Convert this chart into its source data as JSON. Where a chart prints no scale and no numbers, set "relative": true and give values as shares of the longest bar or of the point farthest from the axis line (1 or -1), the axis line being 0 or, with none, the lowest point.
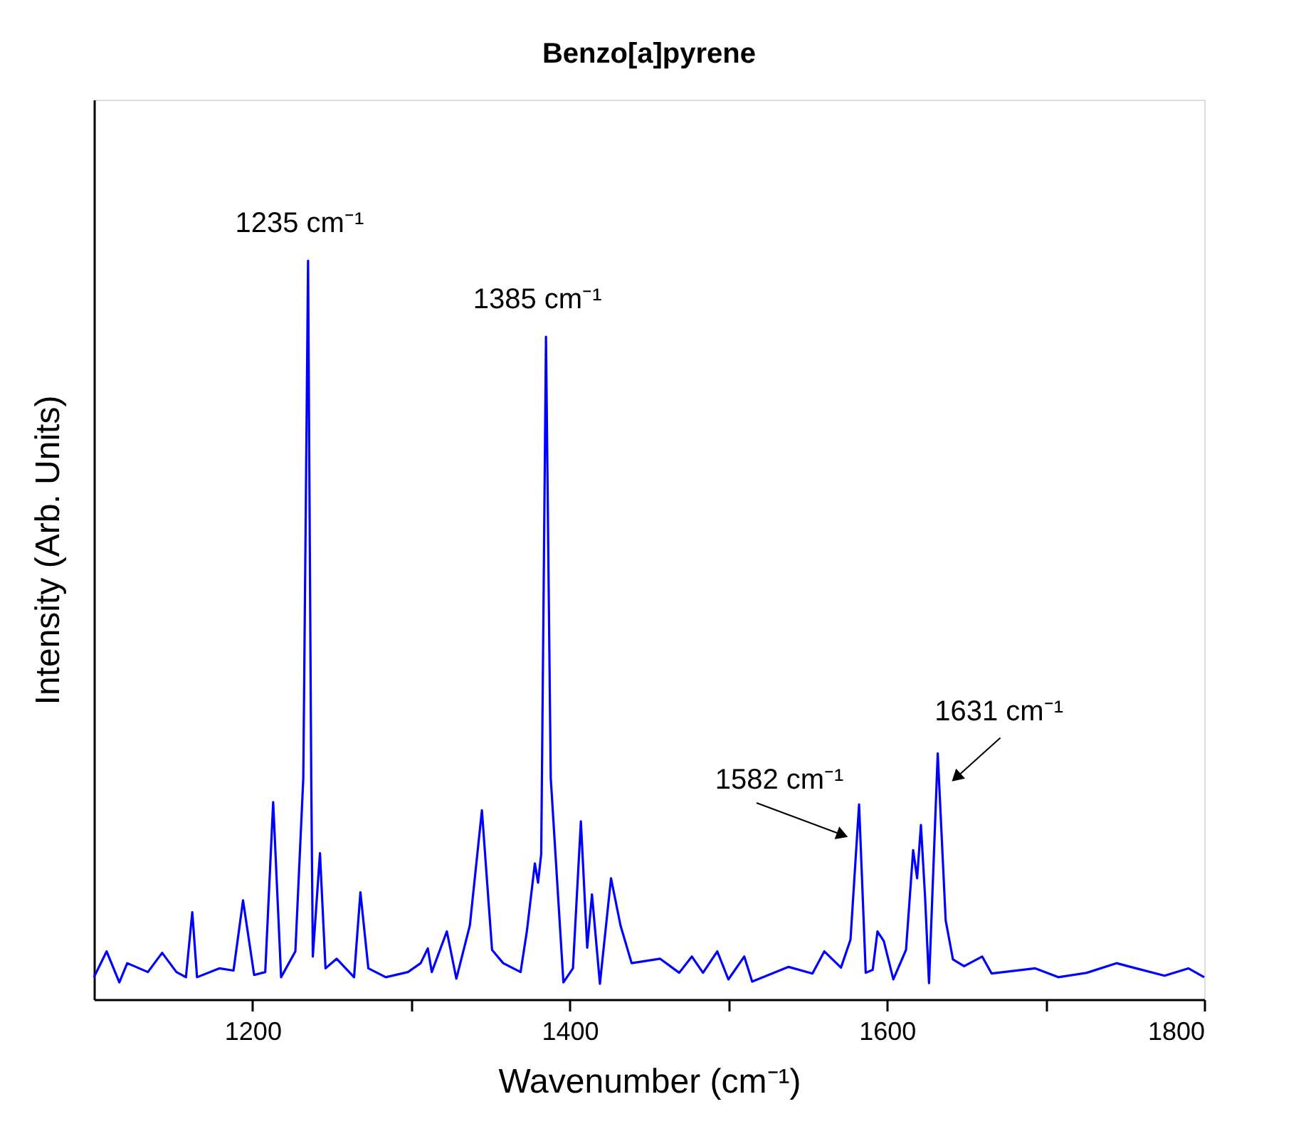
{
  "chart_data": {
    "type": "line",
    "title": "Benzo[a]pyrene",
    "xlabel": "Wavenumber (cm⁻¹)",
    "ylabel": "Intensity (Arb. Units)",
    "relative": true,
    "xlim": [
      1100,
      1800
    ],
    "xticks": [
      1200,
      {
        "value": 1300,
        "label": null
      },
      1400,
      {
        "value": 1500,
        "label": null
      },
      1600,
      {
        "value": 1700,
        "label": null
      },
      1800
    ],
    "grid": false,
    "marker": "none",
    "line_style": "solid",
    "series": [
      {
        "color": "#0000ff",
        "x": [
          1100,
          1108,
          1116,
          1121,
          1134,
          1143,
          1152,
          1158,
          1162,
          1165,
          1179,
          1188,
          1194,
          1201,
          1208,
          1213,
          1218,
          1227,
          1232,
          1235,
          1237,
          1238,
          1242.5,
          1246,
          1253,
          1264,
          1268,
          1273,
          1284,
          1298,
          1306,
          1310.5,
          1313,
          1322.5,
          1328.5,
          1337,
          1344.6,
          1351,
          1358,
          1369,
          1373,
          1378,
          1380,
          1382,
          1385,
          1388,
          1396,
          1402,
          1407,
          1411,
          1414,
          1419,
          1426,
          1432,
          1439,
          1457,
          1469,
          1477,
          1484,
          1493,
          1500,
          1510,
          1515,
          1538,
          1553,
          1560.5,
          1571,
          1577,
          1582.4,
          1586.6,
          1591,
          1594,
          1598,
          1604,
          1612,
          1616.5,
          1619,
          1621.4,
          1624,
          1626.5,
          1632,
          1637,
          1641.6,
          1648.6,
          1660,
          1666,
          1693.5,
          1708,
          1726,
          1744.7,
          1757,
          1775,
          1790,
          1800
        ],
        "values": [
          0.03,
          0.065,
          0.023,
          0.049,
          0.037,
          0.063,
          0.037,
          0.03,
          0.118,
          0.03,
          0.042,
          0.039,
          0.134,
          0.033,
          0.037,
          0.267,
          0.03,
          0.065,
          0.3,
          1.0,
          0.3,
          0.058,
          0.198,
          0.042,
          0.055,
          0.03,
          0.145,
          0.042,
          0.03,
          0.037,
          0.049,
          0.069,
          0.037,
          0.092,
          0.028,
          0.1,
          0.256,
          0.067,
          0.049,
          0.037,
          0.093,
          0.184,
          0.158,
          0.197,
          0.897,
          0.3,
          0.023,
          0.042,
          0.241,
          0.07,
          0.142,
          0.021,
          0.164,
          0.1,
          0.049,
          0.055,
          0.036,
          0.058,
          0.036,
          0.065,
          0.027,
          0.058,
          0.024,
          0.044,
          0.035,
          0.065,
          0.043,
          0.081,
          0.264,
          0.036,
          0.04,
          0.092,
          0.079,
          0.027,
          0.067,
          0.202,
          0.164,
          0.236,
          0.139,
          0.022,
          0.333,
          0.107,
          0.054,
          0.045,
          0.058,
          0.035,
          0.042,
          0.03,
          0.036,
          0.049,
          0.042,
          0.032,
          0.042,
          0.03
        ]
      }
    ],
    "annotations": [
      {
        "text": "1235 cm⁻¹",
        "x": 1235,
        "y": 1.0
      },
      {
        "text": "1385 cm⁻¹",
        "x": 1385,
        "y": 0.897
      },
      {
        "text": "1582 cm⁻¹",
        "x": 1582.4,
        "y": 0.264
      },
      {
        "text": "1631 cm⁻¹",
        "x": 1632,
        "y": 0.333
      }
    ]
  }
}
